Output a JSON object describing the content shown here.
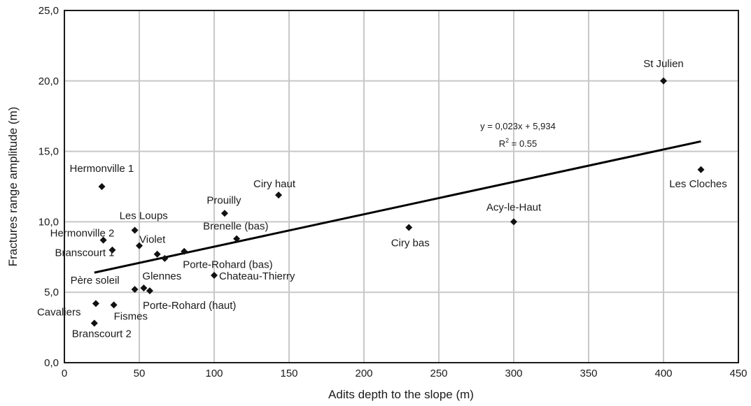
{
  "chart_data": {
    "type": "scatter",
    "xlabel": "Adits depth to the slope (m)",
    "ylabel": "Fractures range amplitude (m)",
    "xlim": [
      0,
      450
    ],
    "ylim": [
      0,
      25
    ],
    "x_ticks": [
      "0",
      "50",
      "100",
      "150",
      "200",
      "250",
      "300",
      "350",
      "400",
      "450"
    ],
    "y_ticks": [
      "0,0",
      "5,0",
      "10,0",
      "15,0",
      "20,0",
      "25,0"
    ],
    "grid": true,
    "points": [
      {
        "label": "St Julien",
        "x": 400,
        "y": 20.0
      },
      {
        "label": "Les Cloches",
        "x": 425,
        "y": 13.7
      },
      {
        "label": "Acy-le-Haut",
        "x": 300,
        "y": 10.0
      },
      {
        "label": "Ciry bas",
        "x": 230,
        "y": 9.6
      },
      {
        "label": "Ciry haut",
        "x": 143,
        "y": 11.9
      },
      {
        "label": "Prouilly",
        "x": 107,
        "y": 10.6
      },
      {
        "label": "Brenelle (bas)",
        "x": 115,
        "y": 8.8
      },
      {
        "label": "Hermonville 1",
        "x": 25,
        "y": 12.5
      },
      {
        "label": "Les Loups",
        "x": 47,
        "y": 9.4
      },
      {
        "label": "Hermonville 2",
        "x": 26,
        "y": 8.7
      },
      {
        "label": "Branscourt 1",
        "x": 32,
        "y": 8.0
      },
      {
        "label": "Violet",
        "x": 50,
        "y": 8.3
      },
      {
        "label": "",
        "x": 62,
        "y": 7.7
      },
      {
        "label": "",
        "x": 67,
        "y": 7.4
      },
      {
        "label": "Porte-Rohard (bas)",
        "x": 80,
        "y": 7.9
      },
      {
        "label": "Chateau-Thierry",
        "x": 100,
        "y": 6.2
      },
      {
        "label": "Père soleil",
        "x": 47,
        "y": 5.2
      },
      {
        "label": "Glennes",
        "x": 53,
        "y": 5.3
      },
      {
        "label": "Porte-Rohard (haut)",
        "x": 57,
        "y": 5.1
      },
      {
        "label": "Cavaliers",
        "x": 21,
        "y": 4.2
      },
      {
        "label": "Fismes",
        "x": 33,
        "y": 4.1
      },
      {
        "label": "Branscourt 2",
        "x": 20,
        "y": 2.8
      }
    ],
    "trendline": {
      "slope": 0.023,
      "intercept": 5.934,
      "x_range": [
        20,
        425
      ],
      "equation": "y = 0,023x + 5,934",
      "r2_prefix": "R",
      "r2_sup": "2",
      "r2_value": " = 0.55"
    }
  }
}
